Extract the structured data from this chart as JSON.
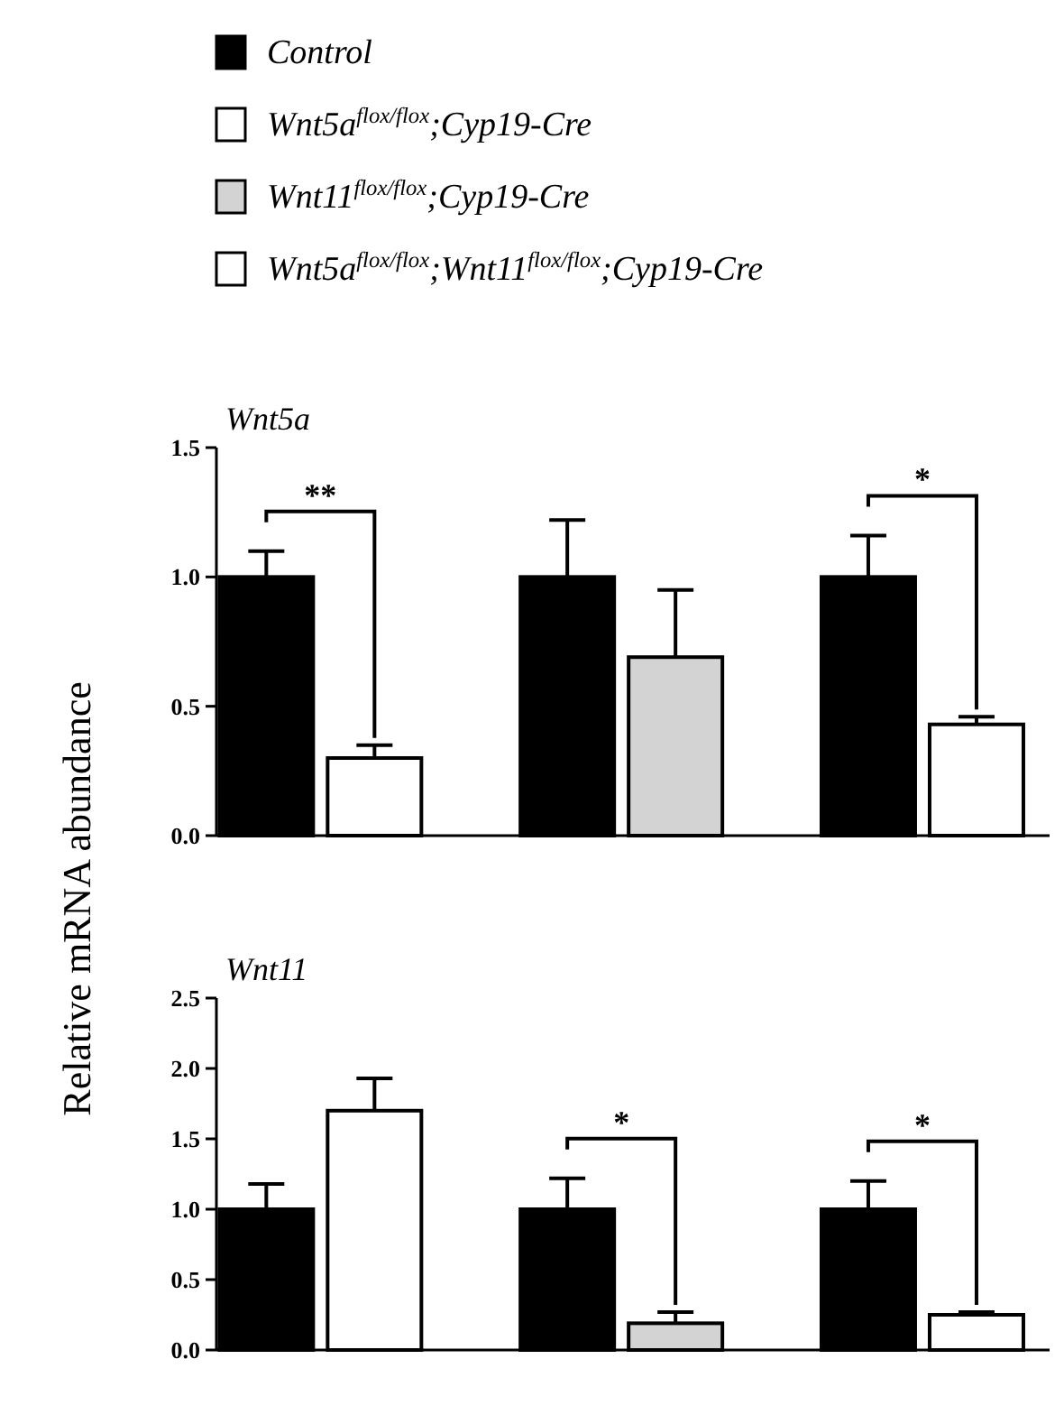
{
  "chart_data": [
    {
      "type": "bar",
      "title": "Wnt5a",
      "ylabel": "Relative mRNA abundance",
      "categories": [
        null,
        null,
        null
      ],
      "legend": "top",
      "series": [
        {
          "name": "Control",
          "color": "#000000",
          "values": [
            1.0,
            1.0,
            1.0
          ],
          "errors": [
            0.1,
            0.22,
            0.16
          ]
        },
        {
          "name": "Wnt5a$^{flox/flox}$;Cyp19-Cre",
          "color": "#ffffff",
          "values": [
            0.3,
            null,
            null
          ],
          "errors": [
            0.05,
            null,
            null
          ]
        },
        {
          "name": "Wnt11$^{flox/flox}$;Cyp19-Cre",
          "color": "#d3d3d3",
          "values": [
            null,
            0.69,
            null
          ],
          "errors": [
            null,
            0.26,
            null
          ]
        },
        {
          "name": "Wnt5a$^{flox/flox}$;Wnt11$^{flox/flox}$;Cyp19-Cre",
          "color": "#ffffff",
          "values": [
            null,
            null,
            0.43
          ],
          "errors": [
            null,
            null,
            0.03
          ]
        }
      ],
      "ylim": [
        0,
        1.5
      ],
      "yticks": [
        {
          "value": 0,
          "label": "0.0"
        },
        0.5,
        {
          "value": 1,
          "label": "1.0"
        },
        1.5
      ],
      "annotations": [
        "**",
        "*"
      ]
    },
    {
      "type": "bar",
      "title": "Wnt11",
      "categories": [
        null,
        null,
        null
      ],
      "series": [
        {
          "color": "#000000",
          "values": [
            1.0,
            1.0,
            1.0
          ],
          "errors": [
            0.18,
            0.22,
            0.2
          ]
        },
        {
          "color": "#ffffff",
          "values": [
            1.7,
            null,
            null
          ],
          "errors": [
            0.23,
            null,
            null
          ]
        },
        {
          "color": "#d3d3d3",
          "values": [
            null,
            0.19,
            null
          ],
          "errors": [
            null,
            0.08,
            null
          ]
        },
        {
          "color": "#ffffff",
          "values": [
            null,
            null,
            0.25
          ],
          "errors": [
            null,
            null,
            0.02
          ]
        }
      ],
      "ylim": [
        0,
        2.5
      ],
      "yticks": [
        {
          "value": 0,
          "label": "0.0"
        },
        0.5,
        {
          "value": 1,
          "label": "1.0"
        },
        1.5,
        {
          "value": 2,
          "label": "2.0"
        },
        2.5
      ],
      "annotations": [
        "*",
        "*"
      ]
    }
  ]
}
